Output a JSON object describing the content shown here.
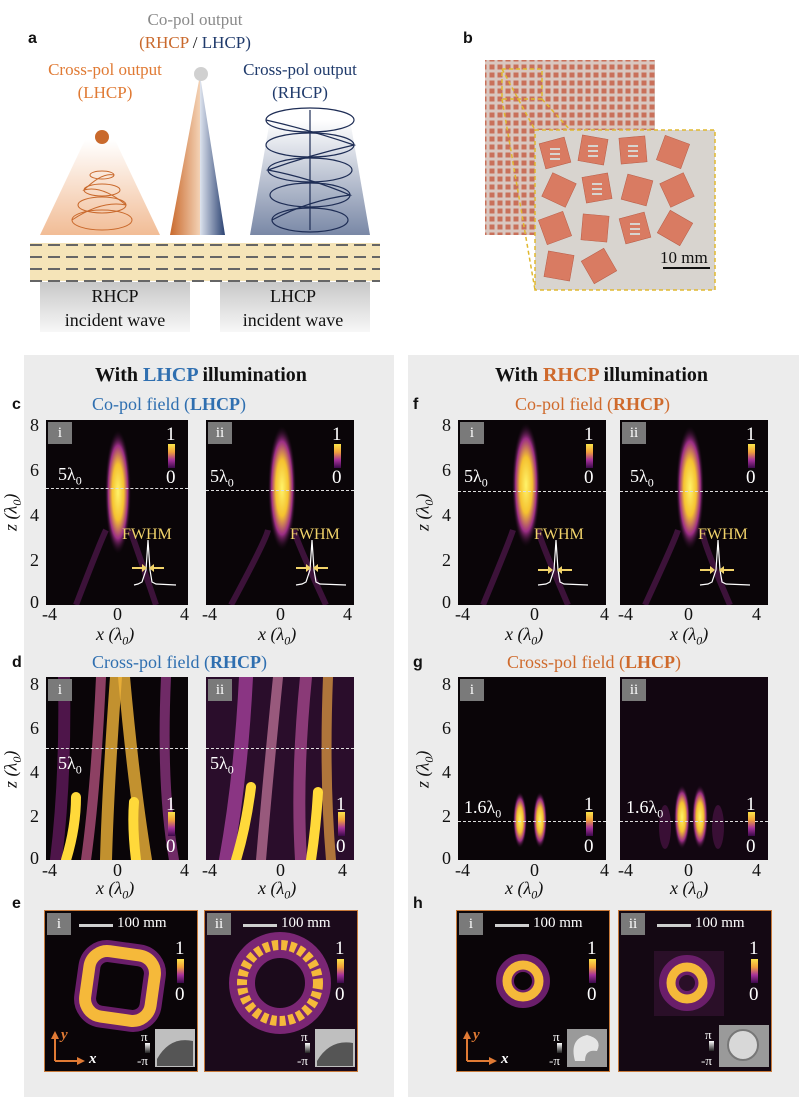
{
  "panel_letters": {
    "a": "a",
    "b": "b",
    "c": "c",
    "d": "d",
    "e": "e",
    "f": "f",
    "g": "g",
    "h": "h"
  },
  "panel_a": {
    "copol_line1": "Co-pol output",
    "copol_line2_a": "(RHCP",
    "copol_line2_sep": " / ",
    "copol_line2_b": "LHCP)",
    "crosspol_left_line1": "Cross-pol output",
    "crosspol_left_line2": "(LHCP)",
    "crosspol_right_line1": "Cross-pol output",
    "crosspol_right_line2": "(RHCP)",
    "incident_left_line1": "RHCP",
    "incident_left_line2": "incident wave",
    "incident_right_line1": "LHCP",
    "incident_right_line2": "incident wave"
  },
  "panel_b": {
    "scale": "10 mm"
  },
  "left_header": {
    "pre": "With ",
    "hl": "LHCP",
    "post": " illumination"
  },
  "right_header": {
    "pre": "With ",
    "hl": "RHCP",
    "post": " illumination"
  },
  "titles": {
    "c_pre": "Co-pol field (",
    "c_hl": "LHCP",
    "c_post": ")",
    "d_pre": "Cross-pol field (",
    "d_hl": "RHCP",
    "d_post": ")",
    "f_pre": "Co-pol field (",
    "f_hl": "RHCP",
    "f_post": ")",
    "g_pre": "Cross-pol field (",
    "g_hl": "LHCP",
    "g_post": ")"
  },
  "subpanels": {
    "i": "i",
    "ii": "ii"
  },
  "colorbar": {
    "max": "1",
    "min": "0"
  },
  "fwhm": "FWHM",
  "lambda_labels": {
    "five": "5λ",
    "onesix": "1.6λ",
    "sub": "0"
  },
  "axes": {
    "z_label": "z (λ",
    "x_label": "x (λ",
    "sub": "0",
    "close": ")",
    "yticks": [
      "8",
      "6",
      "4",
      "2",
      "0"
    ],
    "xticks": [
      "-4",
      "0",
      "4"
    ]
  },
  "scale_100": "100 mm",
  "phase": {
    "pi": "π",
    "mpi": "-π"
  },
  "xy_axes": {
    "y": "y",
    "x": "x"
  },
  "colors": {
    "blue": "#2f6fb0",
    "orange": "#cf6a2c",
    "navy": "#1f3a6b",
    "yellow": "#f1d36a"
  }
}
